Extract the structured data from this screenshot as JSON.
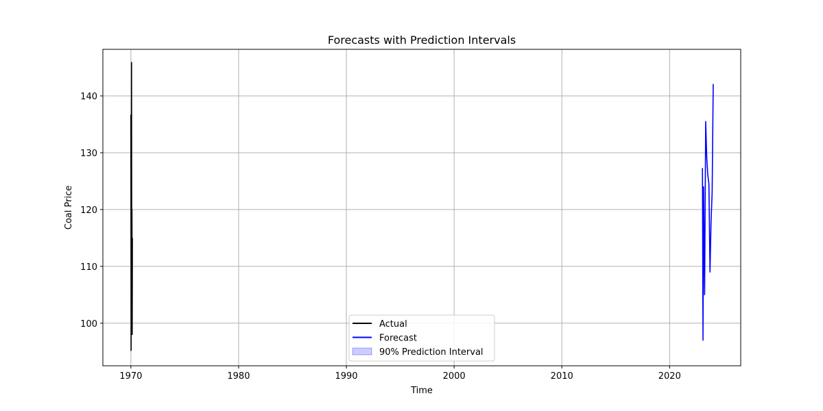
{
  "chart_data": {
    "type": "line",
    "title": "Forecasts with Prediction Intervals",
    "xlabel": "Time",
    "ylabel": "Coal Price",
    "xlim": [
      1967.4,
      2026.6
    ],
    "ylim": [
      92.5,
      148.2
    ],
    "x_ticks": [
      1970,
      1980,
      1990,
      2000,
      2010,
      2020
    ],
    "y_ticks": [
      100,
      110,
      120,
      130,
      140
    ],
    "grid": true,
    "legend_position": "bottom-center",
    "series": [
      {
        "name": "Actual",
        "color": "#000000",
        "kind": "line",
        "x": [
          1970.0,
          1970.02,
          1970.04,
          1970.06,
          1970.08,
          1970.1,
          1970.12,
          1970.14
        ],
        "y": [
          136.7,
          95.2,
          125.0,
          145.9,
          106.0,
          120.0,
          98.0,
          115.0
        ]
      },
      {
        "name": "Forecast",
        "color": "#0000ff",
        "kind": "line",
        "x": [
          2023.05,
          2023.1,
          2023.15,
          2023.25,
          2023.35,
          2023.45,
          2023.55,
          2023.65,
          2023.75,
          2023.85,
          2023.95,
          2024.05
        ],
        "y": [
          127.3,
          97.0,
          124.0,
          105.0,
          135.5,
          129.0,
          126.0,
          124.5,
          109.0,
          118.0,
          123.0,
          142.1
        ]
      },
      {
        "name": "90% Prediction Interval",
        "color": "#0000ff",
        "fill_opacity": 0.2,
        "kind": "band",
        "x": [],
        "lower": [],
        "upper": []
      }
    ]
  }
}
